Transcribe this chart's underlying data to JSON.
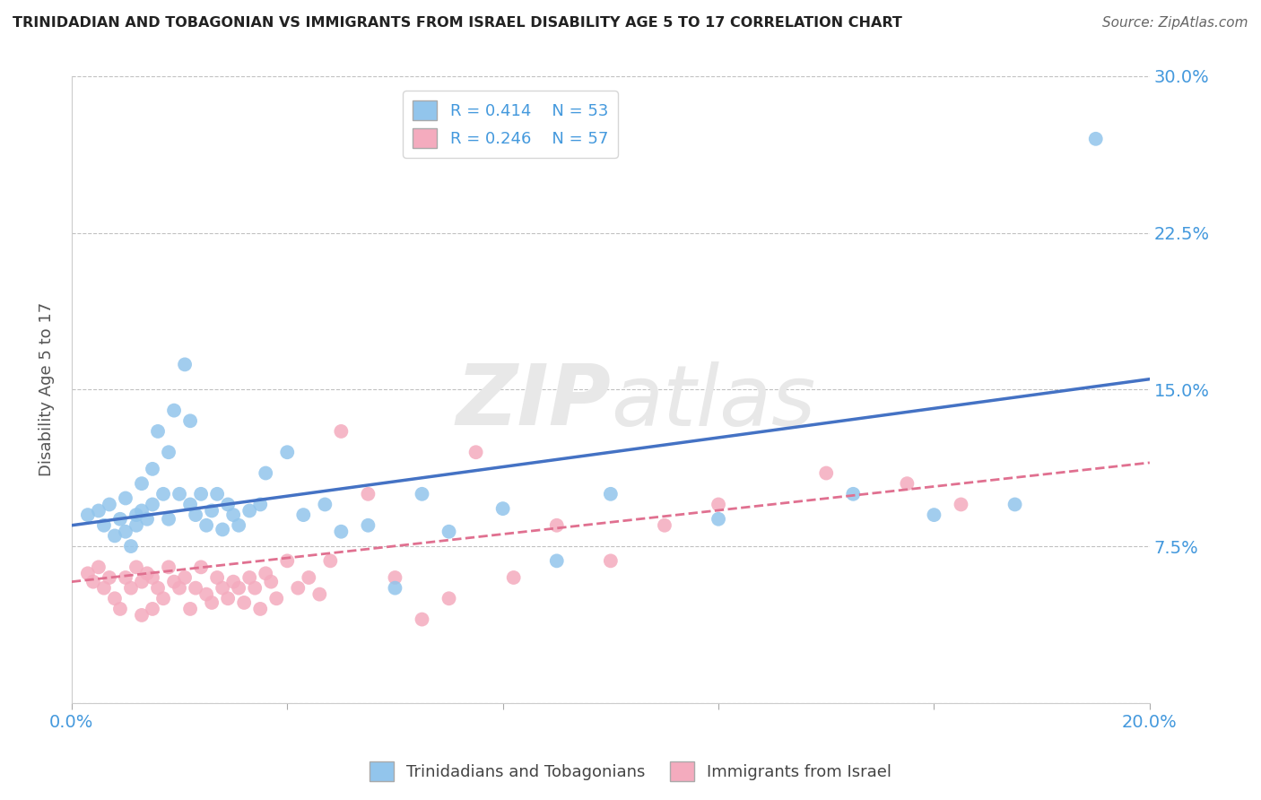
{
  "title": "TRINIDADIAN AND TOBAGONIAN VS IMMIGRANTS FROM ISRAEL DISABILITY AGE 5 TO 17 CORRELATION CHART",
  "source": "Source: ZipAtlas.com",
  "ylabel": "Disability Age 5 to 17",
  "xlim": [
    0.0,
    0.2
  ],
  "ylim": [
    0.0,
    0.3
  ],
  "xticks": [
    0.0,
    0.04,
    0.08,
    0.12,
    0.16,
    0.2
  ],
  "xtick_labels": [
    "0.0%",
    "",
    "",
    "",
    "",
    "20.0%"
  ],
  "ytick_labels_right": [
    "",
    "7.5%",
    "15.0%",
    "22.5%",
    "30.0%"
  ],
  "yticks_right": [
    0.0,
    0.075,
    0.15,
    0.225,
    0.3
  ],
  "blue_R": 0.414,
  "blue_N": 53,
  "pink_R": 0.246,
  "pink_N": 57,
  "blue_color": "#92C5EC",
  "pink_color": "#F4ABBE",
  "blue_line_color": "#4472C4",
  "pink_line_color": "#E07090",
  "title_color": "#222222",
  "source_color": "#666666",
  "label_color": "#4499DD",
  "grid_color": "#BBBBBB",
  "blue_scatter_x": [
    0.003,
    0.005,
    0.006,
    0.007,
    0.008,
    0.009,
    0.01,
    0.01,
    0.011,
    0.012,
    0.012,
    0.013,
    0.013,
    0.014,
    0.015,
    0.015,
    0.016,
    0.017,
    0.018,
    0.018,
    0.019,
    0.02,
    0.021,
    0.022,
    0.022,
    0.023,
    0.024,
    0.025,
    0.026,
    0.027,
    0.028,
    0.029,
    0.03,
    0.031,
    0.033,
    0.035,
    0.036,
    0.04,
    0.043,
    0.047,
    0.05,
    0.055,
    0.06,
    0.065,
    0.07,
    0.08,
    0.09,
    0.1,
    0.12,
    0.145,
    0.16,
    0.175,
    0.19
  ],
  "blue_scatter_y": [
    0.09,
    0.092,
    0.085,
    0.095,
    0.08,
    0.088,
    0.082,
    0.098,
    0.075,
    0.09,
    0.085,
    0.092,
    0.105,
    0.088,
    0.095,
    0.112,
    0.13,
    0.1,
    0.12,
    0.088,
    0.14,
    0.1,
    0.162,
    0.095,
    0.135,
    0.09,
    0.1,
    0.085,
    0.092,
    0.1,
    0.083,
    0.095,
    0.09,
    0.085,
    0.092,
    0.095,
    0.11,
    0.12,
    0.09,
    0.095,
    0.082,
    0.085,
    0.055,
    0.1,
    0.082,
    0.093,
    0.068,
    0.1,
    0.088,
    0.1,
    0.09,
    0.095,
    0.27
  ],
  "pink_scatter_x": [
    0.003,
    0.004,
    0.005,
    0.006,
    0.007,
    0.008,
    0.009,
    0.01,
    0.011,
    0.012,
    0.013,
    0.013,
    0.014,
    0.015,
    0.015,
    0.016,
    0.017,
    0.018,
    0.019,
    0.02,
    0.021,
    0.022,
    0.023,
    0.024,
    0.025,
    0.026,
    0.027,
    0.028,
    0.029,
    0.03,
    0.031,
    0.032,
    0.033,
    0.034,
    0.035,
    0.036,
    0.037,
    0.038,
    0.04,
    0.042,
    0.044,
    0.046,
    0.048,
    0.05,
    0.055,
    0.06,
    0.065,
    0.07,
    0.075,
    0.082,
    0.09,
    0.1,
    0.11,
    0.12,
    0.14,
    0.155,
    0.165
  ],
  "pink_scatter_y": [
    0.062,
    0.058,
    0.065,
    0.055,
    0.06,
    0.05,
    0.045,
    0.06,
    0.055,
    0.065,
    0.042,
    0.058,
    0.062,
    0.045,
    0.06,
    0.055,
    0.05,
    0.065,
    0.058,
    0.055,
    0.06,
    0.045,
    0.055,
    0.065,
    0.052,
    0.048,
    0.06,
    0.055,
    0.05,
    0.058,
    0.055,
    0.048,
    0.06,
    0.055,
    0.045,
    0.062,
    0.058,
    0.05,
    0.068,
    0.055,
    0.06,
    0.052,
    0.068,
    0.13,
    0.1,
    0.06,
    0.04,
    0.05,
    0.12,
    0.06,
    0.085,
    0.068,
    0.085,
    0.095,
    0.11,
    0.105,
    0.095
  ],
  "blue_trend_x": [
    0.0,
    0.2
  ],
  "blue_trend_y": [
    0.085,
    0.155
  ],
  "pink_trend_x": [
    0.0,
    0.2
  ],
  "pink_trend_y": [
    0.058,
    0.115
  ],
  "legend_label_blue": "Trinidadians and Tobagonians",
  "legend_label_pink": "Immigrants from Israel"
}
